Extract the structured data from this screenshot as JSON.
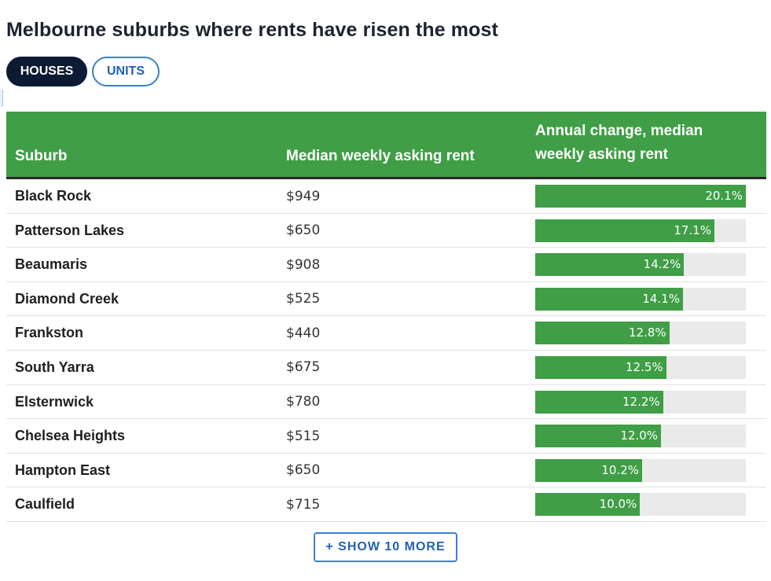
{
  "title": "Melbourne suburbs where rents have risen the most",
  "tabs": {
    "houses": "HOUSES",
    "units": "UNITS",
    "active": "houses"
  },
  "table": {
    "headers": {
      "suburb": "Suburb",
      "rent": "Median weekly asking rent",
      "change": "Annual change, median weekly asking rent"
    },
    "rows": [
      {
        "suburb": "Black Rock",
        "rent": "$949",
        "change": "20.1%",
        "value": 20.1
      },
      {
        "suburb": "Patterson Lakes",
        "rent": "$650",
        "change": "17.1%",
        "value": 17.1
      },
      {
        "suburb": "Beaumaris",
        "rent": "$908",
        "change": "14.2%",
        "value": 14.2
      },
      {
        "suburb": "Diamond Creek",
        "rent": "$525",
        "change": "14.1%",
        "value": 14.1
      },
      {
        "suburb": "Frankston",
        "rent": "$440",
        "change": "12.8%",
        "value": 12.8
      },
      {
        "suburb": "South Yarra",
        "rent": "$675",
        "change": "12.5%",
        "value": 12.5
      },
      {
        "suburb": "Elsternwick",
        "rent": "$780",
        "change": "12.2%",
        "value": 12.2
      },
      {
        "suburb": "Chelsea Heights",
        "rent": "$515",
        "change": "12.0%",
        "value": 12.0
      },
      {
        "suburb": "Hampton East",
        "rent": "$650",
        "change": "10.2%",
        "value": 10.2
      },
      {
        "suburb": "Caulfield",
        "rent": "$715",
        "change": "10.0%",
        "value": 10.0
      }
    ],
    "bar_max": 20.1
  },
  "show_more_label": "+ SHOW 10 MORE",
  "colors": {
    "header_green": "#3f9e46",
    "bar_green": "#3f9e46",
    "active_tab": "#0c1a33",
    "link_blue": "#1f62b5"
  }
}
